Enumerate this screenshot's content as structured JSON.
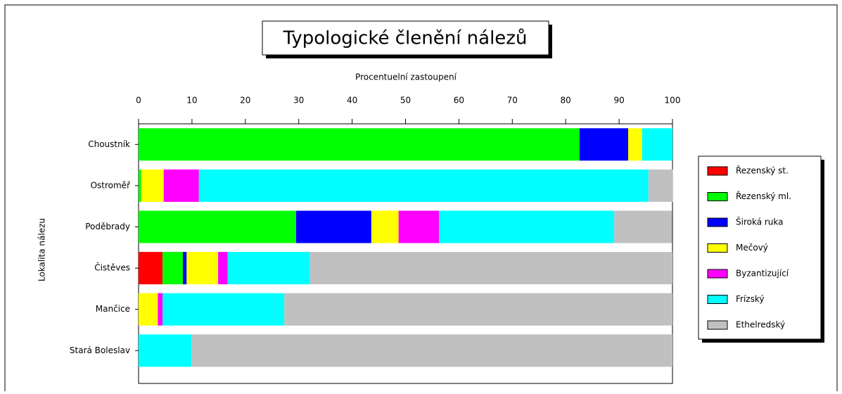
{
  "chart_data": {
    "type": "stacked_barh",
    "title": "Typologické členění nálezů",
    "x_label": "Procentuelní zastoupení",
    "y_label": "Lokalita nálezu",
    "categories": [
      "Choustník",
      "Ostroměř",
      "Poděbrady",
      "Čistěves",
      "Mančice",
      "Stará Boleslav"
    ],
    "series": [
      {
        "name": "Řezenský st.",
        "color": "#ff0000",
        "values": [
          0,
          0,
          0,
          4.5,
          0,
          0
        ]
      },
      {
        "name": "Řezenský ml.",
        "color": "#00ff00",
        "values": [
          82.6,
          0.5,
          29.5,
          3.8,
          0,
          0
        ]
      },
      {
        "name": "Široká ruka",
        "color": "#0000ff",
        "values": [
          9.1,
          0,
          14.1,
          0.7,
          0,
          0
        ]
      },
      {
        "name": "Mečový",
        "color": "#ffff00",
        "values": [
          2.6,
          4.2,
          5.1,
          5.9,
          3.6,
          0
        ]
      },
      {
        "name": "Byzantizující",
        "color": "#ff00ff",
        "values": [
          0,
          6.6,
          7.6,
          1.8,
          0.9,
          0
        ]
      },
      {
        "name": "Frízský",
        "color": "#00ffff",
        "values": [
          5.7,
          84.2,
          32.8,
          15.4,
          22.8,
          9.9
        ]
      },
      {
        "name": "Ethelredský",
        "color": "#c0c0c0",
        "values": [
          0,
          4.6,
          10.8,
          67.9,
          72.7,
          90.1
        ]
      }
    ],
    "xlim": [
      0,
      100
    ],
    "xticks": [
      0,
      10,
      20,
      30,
      40,
      50,
      60,
      70,
      80,
      90,
      100
    ],
    "legend": "right"
  }
}
